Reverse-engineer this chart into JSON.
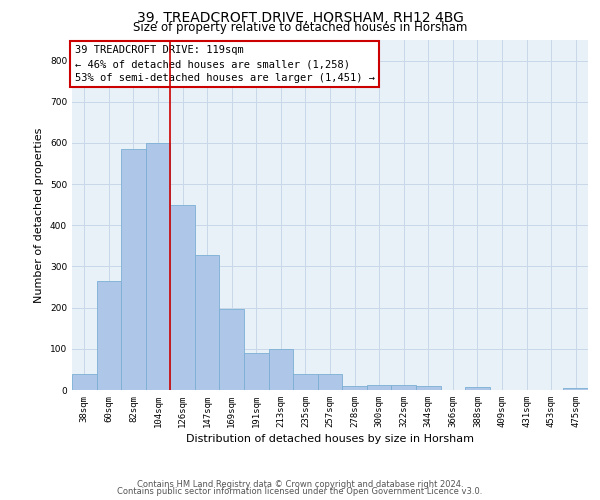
{
  "title": "39, TREADCROFT DRIVE, HORSHAM, RH12 4BG",
  "subtitle": "Size of property relative to detached houses in Horsham",
  "xlabel": "Distribution of detached houses by size in Horsham",
  "ylabel": "Number of detached properties",
  "categories": [
    "38sqm",
    "60sqm",
    "82sqm",
    "104sqm",
    "126sqm",
    "147sqm",
    "169sqm",
    "191sqm",
    "213sqm",
    "235sqm",
    "257sqm",
    "278sqm",
    "300sqm",
    "322sqm",
    "344sqm",
    "366sqm",
    "388sqm",
    "409sqm",
    "431sqm",
    "453sqm",
    "475sqm"
  ],
  "values": [
    38,
    265,
    585,
    600,
    450,
    328,
    197,
    90,
    100,
    38,
    38,
    10,
    13,
    13,
    10,
    0,
    8,
    0,
    0,
    0,
    5
  ],
  "bar_color": "#aec6e8",
  "bar_edge_color": "#7bafd4",
  "vline_x": 3.5,
  "vline_color": "#cc0000",
  "annotation_line1": "39 TREADCROFT DRIVE: 119sqm",
  "annotation_line2": "← 46% of detached houses are smaller (1,258)",
  "annotation_line3": "53% of semi-detached houses are larger (1,451) →",
  "annotation_box_color": "#ffffff",
  "annotation_box_edge": "#cc0000",
  "ylim": [
    0,
    850
  ],
  "yticks": [
    0,
    100,
    200,
    300,
    400,
    500,
    600,
    700,
    800
  ],
  "grid_color": "#c8d8e8",
  "bg_color": "#e8f0f8",
  "footer_line1": "Contains HM Land Registry data © Crown copyright and database right 2024.",
  "footer_line2": "Contains public sector information licensed under the Open Government Licence v3.0.",
  "title_fontsize": 10,
  "subtitle_fontsize": 8.5,
  "ylabel_fontsize": 8,
  "xlabel_fontsize": 8,
  "tick_fontsize": 6.5,
  "annotation_fontsize": 7.5,
  "footer_fontsize": 6
}
